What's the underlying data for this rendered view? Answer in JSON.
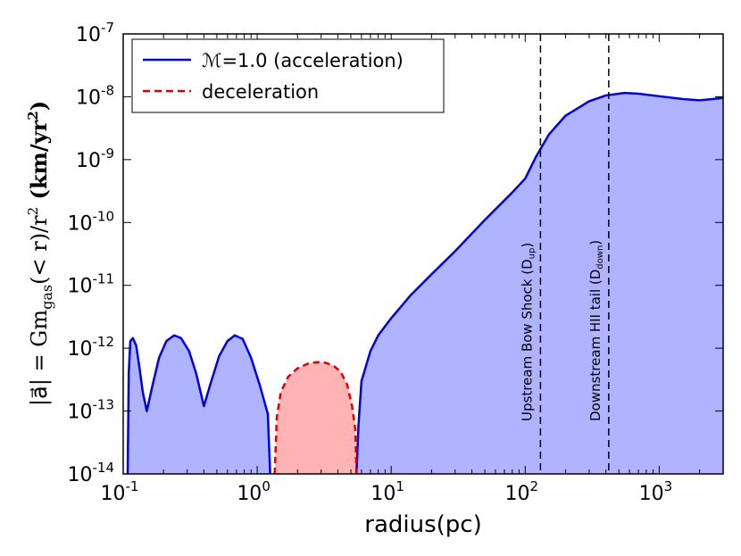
{
  "chart_data": {
    "type": "area",
    "title": "",
    "xlabel": "radius(pc)",
    "ylabel_parts": {
      "prefix": "|a⃗| = Gm",
      "sub": "gas",
      "middle": "(< r)/r",
      "sup": "2",
      "units_open": " (km/yr",
      "units_sup": "2",
      "units_close": ")"
    },
    "xscale": "log",
    "yscale": "log",
    "xlim": [
      0.1,
      3000
    ],
    "ylim": [
      1e-14,
      1e-07
    ],
    "x_ticks": [
      {
        "base": "10",
        "exp": "-1"
      },
      {
        "base": "10",
        "exp": "0"
      },
      {
        "base": "10",
        "exp": "1"
      },
      {
        "base": "10",
        "exp": "2"
      },
      {
        "base": "10",
        "exp": "3"
      }
    ],
    "y_ticks": [
      {
        "base": "10",
        "exp": "-14"
      },
      {
        "base": "10",
        "exp": "-13"
      },
      {
        "base": "10",
        "exp": "-12"
      },
      {
        "base": "10",
        "exp": "-11"
      },
      {
        "base": "10",
        "exp": "-10"
      },
      {
        "base": "10",
        "exp": "-9"
      },
      {
        "base": "10",
        "exp": "-8"
      },
      {
        "base": "10",
        "exp": "-7"
      }
    ],
    "legend_position": "upper-left",
    "series": [
      {
        "name": "acceleration",
        "legend_label": "ℳ=1.0 (acceleration)",
        "line_color": "#0000dd",
        "fill_color": "#b0b3ff",
        "line_style": "solid",
        "x": [
          0.108,
          0.11,
          0.113,
          0.118,
          0.125,
          0.132,
          0.14,
          0.15,
          0.165,
          0.185,
          0.21,
          0.24,
          0.27,
          0.31,
          0.35,
          0.4,
          0.45,
          0.52,
          0.6,
          0.68,
          0.78,
          0.9,
          1.05,
          1.2,
          1.25
        ],
        "y": [
          1e-14,
          4e-13,
          1.3e-12,
          1.45e-12,
          1.1e-12,
          5e-13,
          2e-13,
          1e-13,
          2.5e-13,
          7e-13,
          1.3e-12,
          1.6e-12,
          1.45e-12,
          9e-13,
          4e-13,
          1.2e-13,
          2.8e-13,
          7.5e-13,
          1.3e-12,
          1.6e-12,
          1.4e-12,
          7e-13,
          2.5e-13,
          9e-14,
          1e-14
        ]
      },
      {
        "name": "acceleration_outer",
        "line_color": "#0000dd",
        "fill_color": "#b0b3ff",
        "line_style": "solid",
        "x": [
          5.5,
          5.7,
          6,
          7,
          8,
          10,
          14,
          20,
          30,
          50,
          80,
          100,
          120,
          150,
          200,
          300,
          400,
          550,
          700,
          1000,
          1500,
          2000,
          2500,
          3000
        ],
        "y": [
          1e-14,
          6e-14,
          3e-13,
          9e-13,
          1.6e-12,
          3e-12,
          7e-12,
          1.5e-11,
          3.5e-11,
          1.1e-10,
          3e-10,
          5e-10,
          1.1e-09,
          2.5e-09,
          5e-09,
          8.5e-09,
          1.05e-08,
          1.15e-08,
          1.12e-08,
          1.02e-08,
          9.2e-09,
          8.8e-09,
          9.2e-09,
          9.6e-09
        ]
      },
      {
        "name": "deceleration",
        "legend_label": "deceleration",
        "line_color": "#dd0000",
        "fill_color": "#ffb3b3",
        "line_style": "dashed",
        "x": [
          1.35,
          1.4,
          1.5,
          1.7,
          2,
          2.4,
          2.8,
          3.2,
          3.7,
          4.2,
          4.7,
          5.1,
          5.4,
          5.5
        ],
        "y": [
          1e-14,
          8e-14,
          2e-13,
          3.5e-13,
          4.8e-13,
          5.7e-13,
          6e-13,
          5.9e-13,
          5.3e-13,
          4.2e-13,
          2.6e-13,
          1.2e-13,
          5e-14,
          1e-14
        ]
      }
    ],
    "vlines": [
      {
        "x": 130,
        "style": "dashed",
        "color": "#000000",
        "label_main": "Upstream Bow Shock (D",
        "label_sub": "up",
        "label_close": ")"
      },
      {
        "x": 420,
        "style": "dashed",
        "color": "#000000",
        "label_main": "Downstream HII tail (D",
        "label_sub": "down",
        "label_close": ")"
      }
    ]
  }
}
